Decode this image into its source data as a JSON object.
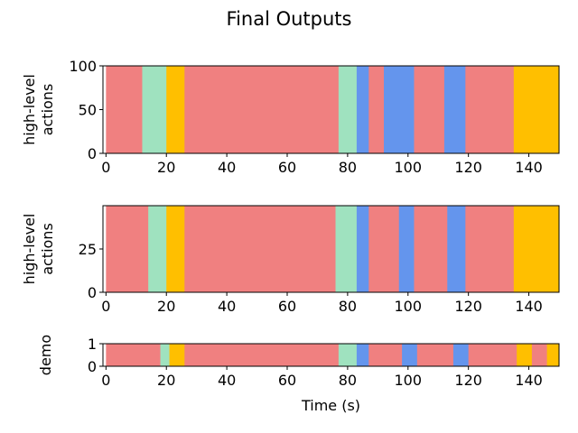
{
  "title": "Final Outputs",
  "colors": {
    "salmon": "#f08080",
    "mint": "#9fe2bf",
    "gold": "#ffbf00",
    "blue": "#6495ed"
  },
  "chart_data": [
    {
      "type": "heatmap",
      "panel": "top",
      "ylabel": [
        "high-level",
        "actions"
      ],
      "xlim": [
        -1,
        150
      ],
      "ylim": [
        0,
        100
      ],
      "xticks": [
        0,
        20,
        40,
        60,
        80,
        100,
        120,
        140
      ],
      "yticks": [
        0,
        50,
        100
      ],
      "x_segments": [
        {
          "start": 0,
          "end": 12,
          "color": "salmon"
        },
        {
          "start": 12,
          "end": 20,
          "color": "mint"
        },
        {
          "start": 20,
          "end": 26,
          "color": "gold"
        },
        {
          "start": 26,
          "end": 77,
          "color": "salmon"
        },
        {
          "start": 77,
          "end": 83,
          "color": "mint"
        },
        {
          "start": 83,
          "end": 87,
          "color": "blue"
        },
        {
          "start": 87,
          "end": 92,
          "color": "salmon"
        },
        {
          "start": 92,
          "end": 102,
          "color": "blue"
        },
        {
          "start": 102,
          "end": 112,
          "color": "salmon"
        },
        {
          "start": 112,
          "end": 119,
          "color": "blue"
        },
        {
          "start": 119,
          "end": 135,
          "color": "salmon"
        },
        {
          "start": 135,
          "end": 150,
          "color": "gold"
        }
      ]
    },
    {
      "type": "heatmap",
      "panel": "middle",
      "ylabel": [
        "high-level",
        "actions"
      ],
      "xlim": [
        -1,
        150
      ],
      "ylim": [
        0,
        50
      ],
      "xticks": [
        0,
        20,
        40,
        60,
        80,
        100,
        120,
        140
      ],
      "yticks": [
        0,
        25
      ],
      "x_segments": [
        {
          "start": 0,
          "end": 14,
          "color": "salmon"
        },
        {
          "start": 14,
          "end": 20,
          "color": "mint"
        },
        {
          "start": 20,
          "end": 26,
          "color": "gold"
        },
        {
          "start": 26,
          "end": 76,
          "color": "salmon"
        },
        {
          "start": 76,
          "end": 83,
          "color": "mint"
        },
        {
          "start": 83,
          "end": 87,
          "color": "blue"
        },
        {
          "start": 87,
          "end": 97,
          "color": "salmon"
        },
        {
          "start": 97,
          "end": 102,
          "color": "blue"
        },
        {
          "start": 102,
          "end": 113,
          "color": "salmon"
        },
        {
          "start": 113,
          "end": 119,
          "color": "blue"
        },
        {
          "start": 119,
          "end": 135,
          "color": "salmon"
        },
        {
          "start": 135,
          "end": 150,
          "color": "gold"
        }
      ]
    },
    {
      "type": "heatmap",
      "panel": "bottom",
      "ylabel": [
        "demo"
      ],
      "xlabel": "Time (s)",
      "xlim": [
        -1,
        150
      ],
      "ylim": [
        0,
        1
      ],
      "xticks": [
        0,
        20,
        40,
        60,
        80,
        100,
        120,
        140
      ],
      "yticks": [
        0,
        1
      ],
      "x_segments": [
        {
          "start": 0,
          "end": 18,
          "color": "salmon"
        },
        {
          "start": 18,
          "end": 21,
          "color": "mint"
        },
        {
          "start": 21,
          "end": 26,
          "color": "gold"
        },
        {
          "start": 26,
          "end": 77,
          "color": "salmon"
        },
        {
          "start": 77,
          "end": 83,
          "color": "mint"
        },
        {
          "start": 83,
          "end": 87,
          "color": "blue"
        },
        {
          "start": 87,
          "end": 98,
          "color": "salmon"
        },
        {
          "start": 98,
          "end": 103,
          "color": "blue"
        },
        {
          "start": 103,
          "end": 115,
          "color": "salmon"
        },
        {
          "start": 115,
          "end": 120,
          "color": "blue"
        },
        {
          "start": 120,
          "end": 136,
          "color": "salmon"
        },
        {
          "start": 136,
          "end": 141,
          "color": "gold"
        },
        {
          "start": 141,
          "end": 146,
          "color": "salmon"
        },
        {
          "start": 146,
          "end": 150,
          "color": "gold"
        }
      ]
    }
  ]
}
